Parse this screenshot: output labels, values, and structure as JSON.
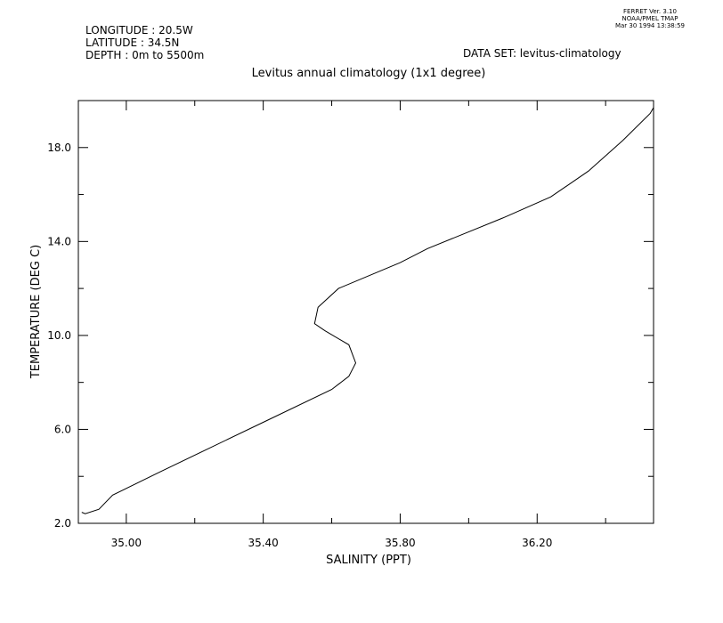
{
  "header": {
    "longitude": "LONGITUDE : 20.5W",
    "latitude": "LATITUDE : 34.5N",
    "depth": "DEPTH : 0m to 5500m",
    "dataset": "DATA SET: levitus-climatology",
    "stamp_line1": "FERRET Ver. 3.10",
    "stamp_line2": "NOAA/PMEL TMAP",
    "stamp_line3": "Mar 30 1994 13:38:59"
  },
  "chart_data": {
    "type": "line",
    "title": "Levitus annual climatology (1x1 degree)",
    "xlabel": "SALINITY (PPT)",
    "ylabel": "TEMPERATURE (DEG C)",
    "xlim": [
      34.86,
      36.54
    ],
    "ylim": [
      2.0,
      20.0
    ],
    "xticks": [
      {
        "value": 35.0,
        "label": "35.00"
      },
      {
        "value": 35.4,
        "label": "35.40"
      },
      {
        "value": 35.8,
        "label": "35.80"
      },
      {
        "value": 36.2,
        "label": "36.20"
      }
    ],
    "xminor": [
      35.2,
      35.6,
      36.0,
      36.4
    ],
    "yticks": [
      {
        "value": 2.0,
        "label": "2.0"
      },
      {
        "value": 6.0,
        "label": "6.0"
      },
      {
        "value": 10.0,
        "label": "10.0"
      },
      {
        "value": 14.0,
        "label": "14.0"
      },
      {
        "value": 18.0,
        "label": "18.0"
      }
    ],
    "yminor": [
      4.0,
      8.0,
      12.0,
      16.0
    ],
    "grid": false,
    "series": [
      {
        "points": [
          [
            34.87,
            2.47
          ],
          [
            34.88,
            2.41
          ],
          [
            34.92,
            2.6
          ],
          [
            34.96,
            3.2
          ],
          [
            35.1,
            4.2
          ],
          [
            35.4,
            6.3
          ],
          [
            35.6,
            7.7
          ],
          [
            35.65,
            8.26
          ],
          [
            35.67,
            8.83
          ],
          [
            35.65,
            9.6
          ],
          [
            35.58,
            10.2
          ],
          [
            35.55,
            10.5
          ],
          [
            35.56,
            11.2
          ],
          [
            35.62,
            12.0
          ],
          [
            35.8,
            13.1
          ],
          [
            35.88,
            13.7
          ],
          [
            36.1,
            15.0
          ],
          [
            36.24,
            15.9
          ],
          [
            36.35,
            17.0
          ],
          [
            36.45,
            18.3
          ],
          [
            36.53,
            19.45
          ],
          [
            36.54,
            19.7
          ]
        ]
      }
    ]
  }
}
